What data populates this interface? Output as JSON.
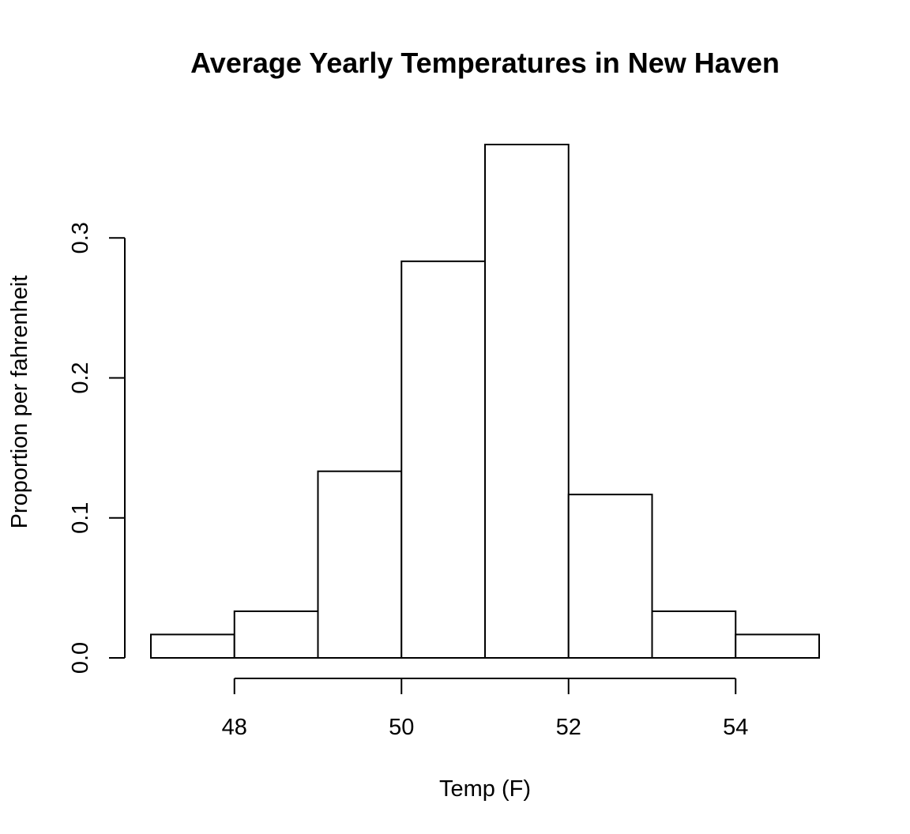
{
  "chart_data": {
    "type": "bar",
    "title": "Average Yearly Temperatures in New Haven",
    "xlabel": "Temp (F)",
    "ylabel": "Proportion per fahrenheit",
    "bins": [
      {
        "from": 47,
        "to": 48,
        "value": 0.0167
      },
      {
        "from": 48,
        "to": 49,
        "value": 0.0333
      },
      {
        "from": 49,
        "to": 50,
        "value": 0.1333
      },
      {
        "from": 50,
        "to": 51,
        "value": 0.2833
      },
      {
        "from": 51,
        "to": 52,
        "value": 0.3667
      },
      {
        "from": 52,
        "to": 53,
        "value": 0.1167
      },
      {
        "from": 53,
        "to": 54,
        "value": 0.0333
      },
      {
        "from": 54,
        "to": 55,
        "value": 0.0167
      }
    ],
    "xlim": [
      47,
      55
    ],
    "ylim": [
      0,
      0.3667
    ],
    "x_ticks": [
      48,
      50,
      52,
      54
    ],
    "x_tick_labels": [
      "48",
      "50",
      "52",
      "54"
    ],
    "y_ticks": [
      0.0,
      0.1,
      0.2,
      0.3
    ],
    "y_tick_labels": [
      "0.0",
      "0.1",
      "0.2",
      "0.3"
    ],
    "grid": false,
    "legend": "none",
    "bar_fill": "#ffffff",
    "bar_stroke": "#000000"
  }
}
